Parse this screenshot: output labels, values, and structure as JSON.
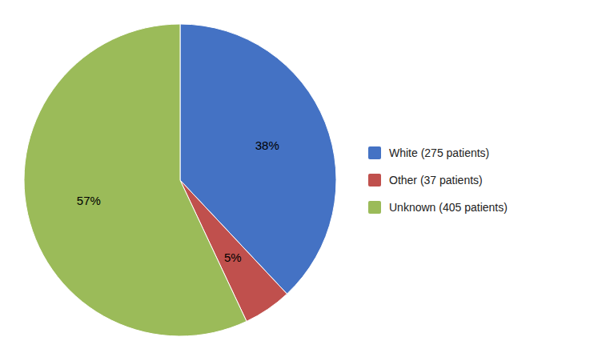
{
  "chart_data": {
    "type": "pie",
    "categories": [
      "White (275 patients)",
      "Other (37 patients)",
      "Unknown (405 patients)"
    ],
    "values": [
      38,
      5,
      57
    ],
    "value_labels": [
      "38%",
      "5%",
      "57%"
    ],
    "colors": [
      "#4472C4",
      "#C0504D",
      "#9BBB59"
    ],
    "data_labels": true,
    "legend": "right"
  }
}
